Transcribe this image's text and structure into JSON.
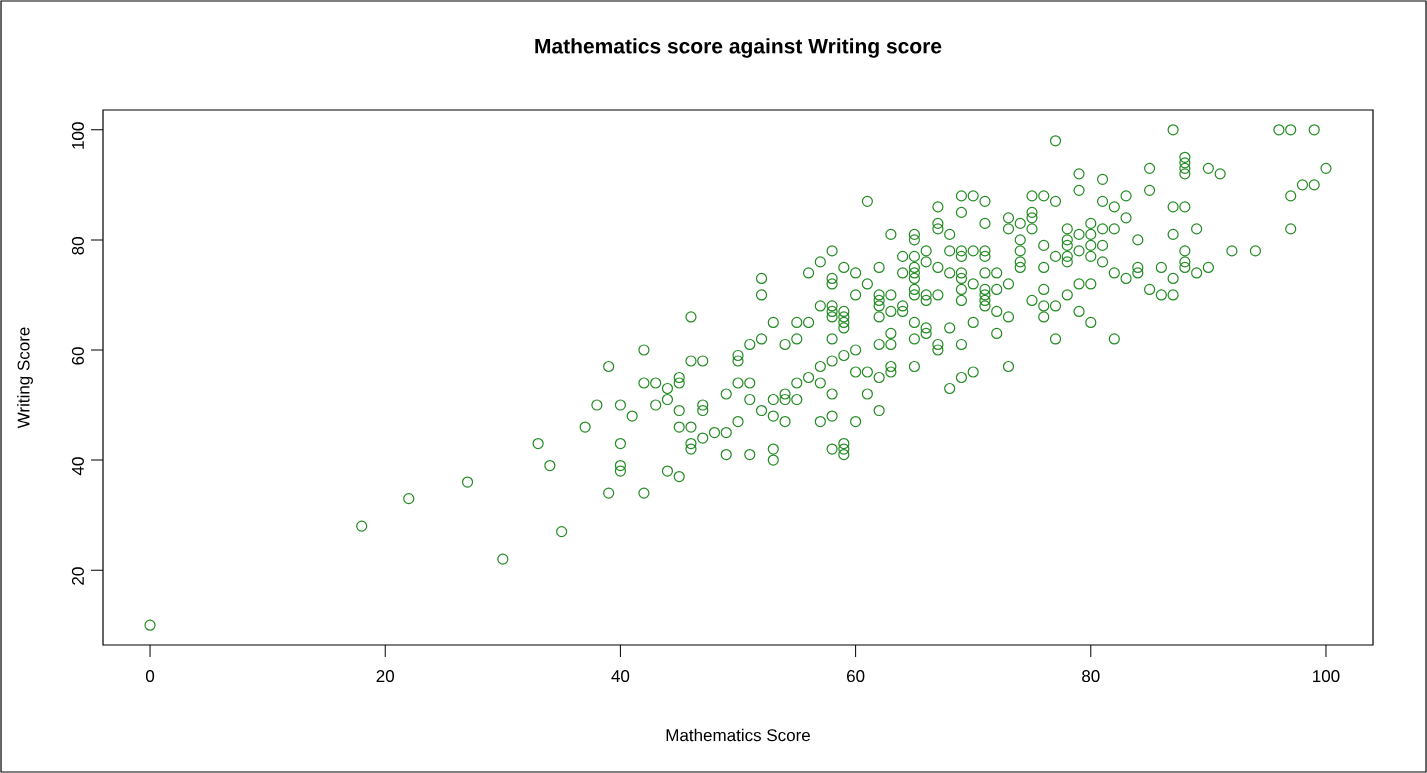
{
  "chart_data": {
    "type": "scatter",
    "title": "Mathematics score against Writing score",
    "xlabel": "Mathematics Score",
    "ylabel": "Writing Score",
    "xlim": [
      -4,
      104
    ],
    "ylim": [
      6.4,
      103.6
    ],
    "xticks": [
      0,
      20,
      40,
      60,
      80,
      100
    ],
    "yticks": [
      20,
      40,
      60,
      80,
      100
    ],
    "marker": "circle",
    "color": "#228b22",
    "x": [
      0,
      18,
      22,
      27,
      30,
      33,
      34,
      35,
      37,
      38,
      39,
      39,
      40,
      40,
      40,
      40,
      41,
      42,
      42,
      42,
      43,
      43,
      44,
      44,
      44,
      45,
      45,
      45,
      45,
      45,
      46,
      46,
      46,
      46,
      46,
      47,
      47,
      47,
      47,
      48,
      49,
      49,
      49,
      50,
      50,
      50,
      50,
      51,
      51,
      51,
      51,
      52,
      52,
      52,
      52,
      53,
      53,
      53,
      53,
      53,
      54,
      54,
      54,
      54,
      55,
      55,
      55,
      55,
      56,
      56,
      56,
      57,
      57,
      57,
      57,
      57,
      58,
      58,
      58,
      58,
      58,
      58,
      58,
      58,
      58,
      58,
      58,
      59,
      59,
      59,
      59,
      59,
      59,
      59,
      59,
      59,
      60,
      60,
      60,
      60,
      60,
      61,
      61,
      61,
      61,
      62,
      62,
      62,
      62,
      62,
      62,
      62,
      62,
      63,
      63,
      63,
      63,
      63,
      63,
      63,
      64,
      64,
      64,
      64,
      65,
      65,
      65,
      65,
      65,
      65,
      65,
      65,
      65,
      65,
      65,
      66,
      66,
      66,
      66,
      66,
      66,
      67,
      67,
      67,
      67,
      67,
      67,
      67,
      68,
      68,
      68,
      68,
      68,
      69,
      69,
      69,
      69,
      69,
      69,
      69,
      69,
      69,
      69,
      70,
      70,
      70,
      70,
      70,
      71,
      71,
      71,
      71,
      71,
      71,
      71,
      71,
      71,
      72,
      72,
      72,
      72,
      73,
      73,
      73,
      73,
      73,
      74,
      74,
      74,
      74,
      74,
      75,
      75,
      75,
      75,
      75,
      76,
      76,
      76,
      76,
      76,
      76,
      77,
      77,
      77,
      77,
      77,
      78,
      78,
      78,
      78,
      78,
      78,
      79,
      79,
      79,
      79,
      79,
      79,
      80,
      80,
      80,
      80,
      80,
      80,
      81,
      81,
      81,
      81,
      81,
      82,
      82,
      82,
      82,
      83,
      83,
      83,
      84,
      84,
      84,
      85,
      85,
      85,
      86,
      86,
      87,
      87,
      87,
      87,
      87,
      88,
      88,
      88,
      88,
      88,
      88,
      88,
      88,
      89,
      89,
      90,
      90,
      91,
      92,
      94,
      96,
      97,
      97,
      97,
      98,
      99,
      99,
      100
    ],
    "values": [
      10,
      28,
      33,
      36,
      22,
      43,
      39,
      27,
      46,
      50,
      57,
      34,
      50,
      43,
      39,
      38,
      48,
      60,
      54,
      34,
      54,
      50,
      53,
      51,
      38,
      55,
      54,
      49,
      46,
      37,
      66,
      58,
      46,
      43,
      42,
      58,
      50,
      49,
      44,
      45,
      52,
      45,
      41,
      59,
      58,
      54,
      47,
      61,
      54,
      51,
      41,
      73,
      70,
      62,
      49,
      65,
      51,
      48,
      42,
      40,
      61,
      52,
      51,
      47,
      65,
      62,
      54,
      51,
      74,
      65,
      55,
      76,
      68,
      57,
      54,
      47,
      78,
      73,
      72,
      68,
      67,
      66,
      62,
      58,
      52,
      48,
      42,
      75,
      67,
      66,
      65,
      64,
      59,
      43,
      42,
      41,
      74,
      70,
      60,
      56,
      47,
      87,
      72,
      56,
      52,
      75,
      70,
      69,
      68,
      66,
      61,
      55,
      49,
      81,
      70,
      67,
      63,
      61,
      57,
      56,
      77,
      74,
      68,
      67,
      81,
      80,
      77,
      75,
      74,
      73,
      71,
      70,
      65,
      62,
      57,
      78,
      76,
      70,
      69,
      64,
      63,
      86,
      83,
      82,
      75,
      70,
      61,
      60,
      81,
      78,
      74,
      64,
      53,
      88,
      85,
      78,
      77,
      74,
      73,
      71,
      69,
      61,
      55,
      88,
      78,
      72,
      65,
      56,
      87,
      83,
      78,
      77,
      74,
      71,
      70,
      69,
      68,
      74,
      71,
      67,
      63,
      84,
      82,
      72,
      66,
      57,
      83,
      80,
      78,
      76,
      75,
      88,
      85,
      84,
      82,
      69,
      88,
      79,
      75,
      71,
      68,
      66,
      98,
      87,
      77,
      68,
      62,
      82,
      80,
      79,
      77,
      76,
      70,
      92,
      89,
      81,
      78,
      72,
      67,
      83,
      81,
      79,
      77,
      72,
      65,
      91,
      87,
      82,
      79,
      76,
      86,
      82,
      74,
      62,
      88,
      84,
      73,
      80,
      75,
      74,
      93,
      89,
      71,
      75,
      70,
      100,
      86,
      81,
      73,
      70,
      95,
      94,
      93,
      92,
      86,
      78,
      76,
      75,
      82,
      74,
      93,
      75,
      92,
      78,
      78,
      100,
      100,
      88,
      82,
      90,
      100,
      90,
      93
    ]
  }
}
